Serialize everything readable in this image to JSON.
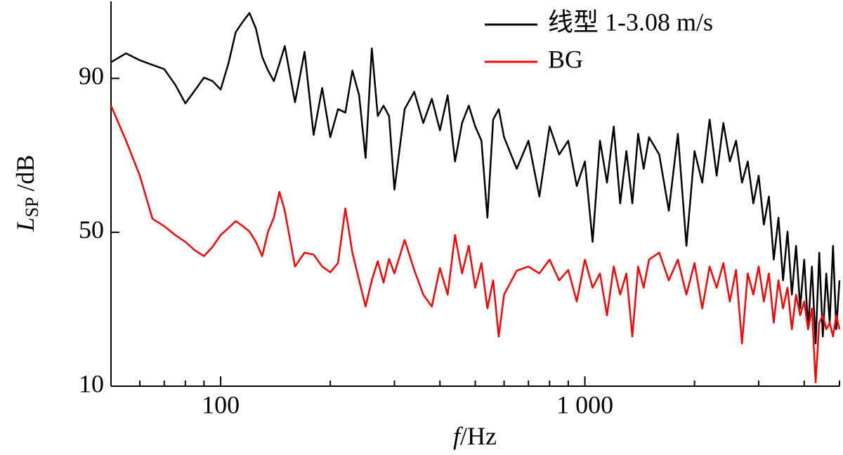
{
  "chart_data": {
    "type": "line",
    "xlabel_symbol": "f",
    "xlabel_unit": "/Hz",
    "ylabel_symbol": "L",
    "ylabel_subscript": "SP",
    "ylabel_unit": "/dB",
    "xscale": "log",
    "xlim": [
      50,
      5000
    ],
    "xticks": [
      100,
      {
        "value": 1000,
        "label": "1 000"
      }
    ],
    "xminor": [
      60,
      70,
      80,
      90,
      200,
      300,
      400,
      500,
      600,
      700,
      800,
      900,
      2000,
      3000,
      4000,
      5000
    ],
    "ylim": [
      10,
      110
    ],
    "yticks": [
      10,
      50,
      90
    ],
    "legend": "upper right",
    "x": [
      50,
      55,
      60,
      65,
      70,
      75,
      80,
      85,
      90,
      95,
      100,
      105,
      110,
      115,
      120,
      125,
      130,
      135,
      140,
      145,
      150,
      160,
      170,
      180,
      190,
      200,
      210,
      220,
      230,
      240,
      250,
      260,
      270,
      280,
      290,
      300,
      320,
      340,
      360,
      380,
      400,
      420,
      440,
      460,
      480,
      500,
      520,
      540,
      560,
      580,
      600,
      650,
      700,
      750,
      800,
      850,
      900,
      950,
      1000,
      1050,
      1100,
      1150,
      1200,
      1250,
      1300,
      1350,
      1400,
      1450,
      1500,
      1600,
      1700,
      1800,
      1900,
      2000,
      2100,
      2200,
      2300,
      2400,
      2500,
      2600,
      2700,
      2800,
      2900,
      3000,
      3100,
      3200,
      3300,
      3400,
      3500,
      3600,
      3700,
      3800,
      3900,
      4000,
      4100,
      4200,
      4300,
      4400,
      4500,
      4600,
      4700,
      4800,
      4900,
      5000
    ],
    "series": [
      {
        "name": "线型 1-3.08 m/s",
        "color": "#000000",
        "values": [
          94.2,
          96.5,
          94.7,
          93.5,
          92.4,
          88.4,
          83.5,
          86.9,
          90.2,
          89.3,
          87.1,
          93.8,
          102,
          104.7,
          107,
          102.9,
          95.6,
          92,
          89.3,
          93.8,
          98.4,
          83.8,
          96.9,
          75.3,
          87.5,
          74.7,
          82,
          81.1,
          92,
          85.6,
          69.3,
          97.8,
          80.2,
          82.9,
          80.2,
          61.1,
          82,
          86.5,
          78.4,
          84.7,
          76.5,
          85.6,
          68.4,
          78.4,
          82.9,
          77.5,
          73.8,
          53.8,
          79.3,
          82,
          74.7,
          66.5,
          73.8,
          59.3,
          77.5,
          70.2,
          73.8,
          62,
          68.4,
          47.5,
          73.8,
          62.9,
          77.5,
          57.5,
          71.1,
          57.5,
          75.6,
          66.5,
          74.7,
          70.2,
          55.6,
          75.6,
          46.5,
          71.1,
          62.9,
          79.3,
          64.7,
          78.4,
          68.4,
          73.8,
          62.9,
          68.4,
          57.5,
          64.7,
          52,
          59.3,
          42.9,
          53.8,
          37.5,
          50.2,
          33.8,
          46.5,
          30.2,
          42.9,
          24.8,
          41.1,
          21.1,
          44.7,
          22.9,
          39.3,
          26.5,
          46.5,
          24.8,
          37.5
        ]
      },
      {
        "name": "BG",
        "color": "#ff0000",
        "values": [
          82.9,
          73.8,
          64.7,
          53.5,
          51.6,
          49.3,
          47.5,
          45.3,
          43.8,
          46.2,
          49.3,
          51.1,
          52.9,
          51.6,
          50.2,
          47.5,
          43.8,
          50.2,
          53.8,
          60.5,
          55.6,
          41.1,
          44.7,
          44.2,
          41.1,
          39.6,
          42,
          56.2,
          44.7,
          37.5,
          30.7,
          37.5,
          42.5,
          36.9,
          43.1,
          39.3,
          48,
          40.2,
          33.8,
          30.7,
          40.7,
          33.8,
          49.3,
          39.3,
          46.5,
          35.6,
          42,
          30.2,
          37.5,
          22.9,
          33.8,
          40,
          41.1,
          39.3,
          42.9,
          37.5,
          40.2,
          32,
          42.9,
          35.6,
          39.3,
          28.4,
          41.1,
          33.8,
          39.3,
          22.9,
          41.1,
          35.6,
          42.9,
          44.7,
          37.5,
          42.9,
          33.8,
          42,
          30.2,
          41.1,
          35.6,
          42,
          32,
          40.2,
          21.1,
          39.3,
          33.8,
          41.1,
          32,
          39.3,
          26.5,
          37.5,
          30.2,
          35.6,
          24.8,
          33.8,
          28.4,
          32,
          24.8,
          30.2,
          11,
          26.5,
          28.4,
          24.8,
          26.5,
          22.9,
          28.4,
          24.8
        ]
      }
    ]
  }
}
